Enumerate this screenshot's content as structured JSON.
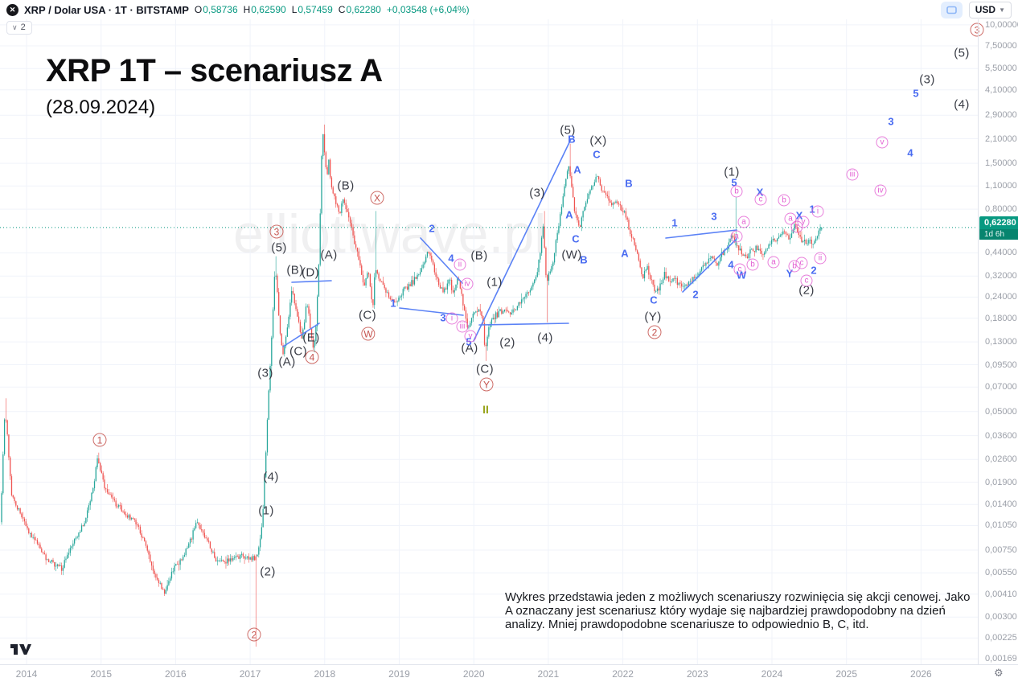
{
  "topbar": {
    "symbol": "XRP / Dolar USA · 1T · BITSTAMP",
    "ohlc": {
      "o_label": "O",
      "o_value": "0,58736",
      "h_label": "H",
      "h_value": "0,62590",
      "l_label": "L",
      "l_value": "0,57459",
      "c_label": "C",
      "c_value": "0,62280",
      "change": "+0,03548 (+6,04%)"
    },
    "currency_button": "USD",
    "interval_badge": "2"
  },
  "title": {
    "main": "XRP 1T – scenariusz A",
    "date": "(28.09.2024)"
  },
  "watermark": "elliottwave.pl",
  "disclaimer": "Wykres przedstawia jeden z możliwych scenariuszy rozwinięcia się akcji cenowej. Jako A oznaczany jest scenariusz który wydaje się najbardziej prawdopodobny na dzień analizy. Mniej prawdopodobne scenariusze to odpowiednio B, C, itd.",
  "price_scale": {
    "ticks": [
      [
        "10,00000",
        10.0
      ],
      [
        "7,50000",
        7.5
      ],
      [
        "5,50000",
        5.5
      ],
      [
        "4,10000",
        4.1
      ],
      [
        "2,90000",
        2.9
      ],
      [
        "2,10000",
        2.1
      ],
      [
        "1,50000",
        1.5
      ],
      [
        "1,10000",
        1.1
      ],
      [
        "0,80000",
        0.8
      ],
      [
        "0,44000",
        0.44
      ],
      [
        "0,32000",
        0.32
      ],
      [
        "0,24000",
        0.24
      ],
      [
        "0,18000",
        0.18
      ],
      [
        "0,13000",
        0.13
      ],
      [
        "0,09500",
        0.095
      ],
      [
        "0,07000",
        0.07
      ],
      [
        "0,05000",
        0.05
      ],
      [
        "0,03600",
        0.036
      ],
      [
        "0,02600",
        0.026
      ],
      [
        "0,01900",
        0.019
      ],
      [
        "0,01400",
        0.014
      ],
      [
        "0,01050",
        0.0105
      ],
      [
        "0,00750",
        0.0075
      ],
      [
        "0,00550",
        0.0055
      ],
      [
        "0,00410",
        0.0041
      ],
      [
        "0,00300",
        0.003
      ],
      [
        "0,00225",
        0.00225
      ],
      [
        "0,00169",
        0.00169
      ]
    ],
    "current": {
      "price": "0,62280",
      "countdown": "1d 6h"
    }
  },
  "time_scale": {
    "years": [
      2014,
      2015,
      2016,
      2017,
      2018,
      2019,
      2020,
      2021,
      2022,
      2023,
      2024,
      2025,
      2026
    ]
  },
  "colors": {
    "candle_up": "#26a69a",
    "candle_down": "#ef5350",
    "grid": "#f0f3fa",
    "trendline": "#5b82f6",
    "accent_green": "#089981",
    "axis_text": "#9b9fa8",
    "label_black": "#3a3d46",
    "label_blue": "#4a6cf1",
    "label_red": "#c5534e",
    "label_pink": "#e25ed2",
    "label_olive": "#98a41a"
  },
  "chart_data": {
    "type": "candlestick",
    "symbol": "XRP/USD (Bitstamp)",
    "timeframe": "1T (weekly)",
    "scale": "logarithmic",
    "x_domain": [
      2013.66,
      2026.3
    ],
    "last_price": 0.6228,
    "last_candle": {
      "open": 0.58736,
      "high": 0.6259,
      "low": 0.57459,
      "close": 0.6228,
      "change": 0.03548,
      "change_pct": 6.04
    },
    "price_anchors": [
      [
        2013.67,
        0.011
      ],
      [
        2013.73,
        0.054
      ],
      [
        2013.82,
        0.0162
      ],
      [
        2013.97,
        0.0113
      ],
      [
        2014.13,
        0.0087
      ],
      [
        2014.29,
        0.0066
      ],
      [
        2014.49,
        0.0059
      ],
      [
        2014.67,
        0.0085
      ],
      [
        2014.81,
        0.0113
      ],
      [
        2014.92,
        0.0183
      ],
      [
        2014.97,
        0.0261
      ],
      [
        2015.07,
        0.0176
      ],
      [
        2015.21,
        0.0143
      ],
      [
        2015.37,
        0.012
      ],
      [
        2015.48,
        0.0113
      ],
      [
        2015.61,
        0.0081
      ],
      [
        2015.75,
        0.0053
      ],
      [
        2015.88,
        0.0041
      ],
      [
        2016.0,
        0.0059
      ],
      [
        2016.13,
        0.007
      ],
      [
        2016.31,
        0.011
      ],
      [
        2016.43,
        0.0087
      ],
      [
        2016.58,
        0.0063
      ],
      [
        2016.75,
        0.0066
      ],
      [
        2016.93,
        0.007
      ],
      [
        2017.04,
        0.0066
      ],
      [
        2017.12,
        0.007
      ],
      [
        2017.18,
        0.0104
      ],
      [
        2017.23,
        0.0285
      ],
      [
        2017.26,
        0.0555
      ],
      [
        2017.29,
        0.0985
      ],
      [
        2017.32,
        0.172
      ],
      [
        2017.35,
        0.37
      ],
      [
        2017.38,
        0.27
      ],
      [
        2017.42,
        0.147
      ],
      [
        2017.46,
        0.11
      ],
      [
        2017.5,
        0.138
      ],
      [
        2017.53,
        0.172
      ],
      [
        2017.56,
        0.23
      ],
      [
        2017.59,
        0.27
      ],
      [
        2017.62,
        0.215
      ],
      [
        2017.67,
        0.172
      ],
      [
        2017.71,
        0.131
      ],
      [
        2017.74,
        0.163
      ],
      [
        2017.78,
        0.23
      ],
      [
        2017.81,
        0.182
      ],
      [
        2017.84,
        0.138
      ],
      [
        2017.87,
        0.115
      ],
      [
        2017.9,
        0.163
      ],
      [
        2017.93,
        0.27
      ],
      [
        2017.95,
        0.51
      ],
      [
        2017.97,
        1.25
      ],
      [
        2017.99,
        2.42
      ],
      [
        2018.02,
        1.71
      ],
      [
        2018.05,
        1.18
      ],
      [
        2018.07,
        1.63
      ],
      [
        2018.1,
        1.18
      ],
      [
        2018.13,
        1.0
      ],
      [
        2018.17,
        0.85
      ],
      [
        2018.23,
        0.77
      ],
      [
        2018.26,
        0.95
      ],
      [
        2018.3,
        0.85
      ],
      [
        2018.36,
        0.67
      ],
      [
        2018.42,
        0.51
      ],
      [
        2018.49,
        0.37
      ],
      [
        2018.55,
        0.285
      ],
      [
        2018.6,
        0.345
      ],
      [
        2018.64,
        0.255
      ],
      [
        2018.68,
        0.198
      ],
      [
        2018.69,
        0.37
      ],
      [
        2018.74,
        0.315
      ],
      [
        2018.8,
        0.285
      ],
      [
        2018.88,
        0.24
      ],
      [
        2018.95,
        0.225
      ],
      [
        2019.02,
        0.24
      ],
      [
        2019.09,
        0.27
      ],
      [
        2019.17,
        0.285
      ],
      [
        2019.25,
        0.315
      ],
      [
        2019.34,
        0.37
      ],
      [
        2019.4,
        0.46
      ],
      [
        2019.47,
        0.37
      ],
      [
        2019.53,
        0.3
      ],
      [
        2019.61,
        0.255
      ],
      [
        2019.69,
        0.3
      ],
      [
        2019.75,
        0.255
      ],
      [
        2019.81,
        0.315
      ],
      [
        2019.88,
        0.215
      ],
      [
        2019.94,
        0.154
      ],
      [
        2020.01,
        0.193
      ],
      [
        2020.07,
        0.2
      ],
      [
        2020.14,
        0.182
      ],
      [
        2020.17,
        0.112
      ],
      [
        2020.22,
        0.163
      ],
      [
        2020.29,
        0.182
      ],
      [
        2020.35,
        0.193
      ],
      [
        2020.44,
        0.2
      ],
      [
        2020.52,
        0.193
      ],
      [
        2020.61,
        0.215
      ],
      [
        2020.7,
        0.24
      ],
      [
        2020.78,
        0.27
      ],
      [
        2020.85,
        0.315
      ],
      [
        2020.9,
        0.41
      ],
      [
        2020.95,
        0.65
      ],
      [
        2020.99,
        0.3
      ],
      [
        2021.04,
        0.33
      ],
      [
        2021.09,
        0.41
      ],
      [
        2021.14,
        0.565
      ],
      [
        2021.2,
        0.85
      ],
      [
        2021.25,
        1.18
      ],
      [
        2021.29,
        1.47
      ],
      [
        2021.33,
        1.06
      ],
      [
        2021.39,
        0.72
      ],
      [
        2021.44,
        0.61
      ],
      [
        2021.5,
        0.8
      ],
      [
        2021.55,
        0.95
      ],
      [
        2021.6,
        1.1
      ],
      [
        2021.67,
        1.24
      ],
      [
        2021.73,
        1.06
      ],
      [
        2021.8,
        0.95
      ],
      [
        2021.86,
        0.85
      ],
      [
        2021.93,
        0.92
      ],
      [
        2021.99,
        0.82
      ],
      [
        2022.06,
        0.72
      ],
      [
        2022.12,
        0.565
      ],
      [
        2022.19,
        0.48
      ],
      [
        2022.24,
        0.37
      ],
      [
        2022.29,
        0.315
      ],
      [
        2022.34,
        0.37
      ],
      [
        2022.4,
        0.3
      ],
      [
        2022.47,
        0.255
      ],
      [
        2022.52,
        0.285
      ],
      [
        2022.58,
        0.33
      ],
      [
        2022.64,
        0.3
      ],
      [
        2022.71,
        0.315
      ],
      [
        2022.77,
        0.285
      ],
      [
        2022.84,
        0.27
      ],
      [
        2022.9,
        0.3
      ],
      [
        2022.97,
        0.315
      ],
      [
        2023.03,
        0.335
      ],
      [
        2023.09,
        0.37
      ],
      [
        2023.16,
        0.385
      ],
      [
        2023.22,
        0.42
      ],
      [
        2023.29,
        0.385
      ],
      [
        2023.35,
        0.435
      ],
      [
        2023.42,
        0.46
      ],
      [
        2023.48,
        0.565
      ],
      [
        2023.55,
        0.48
      ],
      [
        2023.61,
        0.435
      ],
      [
        2023.68,
        0.41
      ],
      [
        2023.74,
        0.45
      ],
      [
        2023.81,
        0.47
      ],
      [
        2023.87,
        0.435
      ],
      [
        2023.94,
        0.46
      ],
      [
        2024.0,
        0.51
      ],
      [
        2024.07,
        0.525
      ],
      [
        2024.13,
        0.565
      ],
      [
        2024.2,
        0.58
      ],
      [
        2024.26,
        0.525
      ],
      [
        2024.32,
        0.63
      ],
      [
        2024.39,
        0.545
      ],
      [
        2024.45,
        0.51
      ],
      [
        2024.52,
        0.525
      ],
      [
        2024.57,
        0.51
      ],
      [
        2024.62,
        0.545
      ],
      [
        2024.65,
        0.58
      ],
      [
        2024.69,
        0.6228
      ]
    ],
    "special_wicks": [
      {
        "t": 2013.73,
        "high": 0.06
      },
      {
        "t": 2014.97,
        "high": 0.0285
      },
      {
        "t": 2017.08,
        "low": 0.002,
        "dir": "down"
      },
      {
        "t": 2017.35,
        "high": 0.42
      },
      {
        "t": 2017.99,
        "high": 2.55
      },
      {
        "t": 2018.69,
        "high": 0.78,
        "dir": "up"
      },
      {
        "t": 2020.17,
        "low": 0.1,
        "dir": "down"
      },
      {
        "t": 2020.94,
        "high": 0.78
      },
      {
        "t": 2020.99,
        "low": 0.17,
        "dir": "down"
      },
      {
        "t": 2021.29,
        "high": 1.96
      },
      {
        "t": 2023.51,
        "high": 0.94,
        "dir": "up"
      }
    ],
    "trendlines": [
      [
        363,
        351,
        412,
        349
      ],
      [
        352,
        431,
        397,
        402
      ],
      [
        523,
        296,
        575,
        352
      ],
      [
        497,
        383,
        576,
        392
      ],
      [
        589,
        424,
        710,
        173
      ],
      [
        596,
        404,
        707,
        402
      ],
      [
        828,
        296,
        916,
        286
      ],
      [
        849,
        363,
        916,
        297
      ]
    ],
    "wave_labels": [
      [
        "(5)",
        347,
        308,
        "k"
      ],
      [
        "(B)",
        367,
        336,
        "k"
      ],
      [
        "(D)",
        386,
        339,
        "k"
      ],
      [
        "(A)",
        409,
        317,
        "k"
      ],
      [
        "(B)",
        430,
        231,
        "k"
      ],
      [
        "(C)",
        457,
        392,
        "k"
      ],
      [
        "(A)",
        357,
        450,
        "k"
      ],
      [
        "(C)",
        371,
        437,
        "k"
      ],
      [
        "(E)",
        387,
        420,
        "k"
      ],
      [
        "(3)",
        330,
        464,
        "k"
      ],
      [
        "(4)",
        337,
        593,
        "k"
      ],
      [
        "(1)",
        331,
        635,
        "k"
      ],
      [
        "(2)",
        333,
        711,
        "k"
      ],
      [
        "(B)",
        596,
        318,
        "k"
      ],
      [
        "(1)",
        615,
        351,
        "k"
      ],
      [
        "(A)",
        584,
        433,
        "k"
      ],
      [
        "(2)",
        631,
        426,
        "k"
      ],
      [
        "(4)",
        678,
        420,
        "k"
      ],
      [
        "(C)",
        603,
        459,
        "k"
      ],
      [
        "(5)",
        706,
        162,
        "k"
      ],
      [
        "(X)",
        744,
        175,
        "k"
      ],
      [
        "(3)",
        668,
        240,
        "k"
      ],
      [
        "(W)",
        711,
        317,
        "k"
      ],
      [
        "(Y)",
        812,
        394,
        "k"
      ],
      [
        "(1)",
        910,
        214,
        "k"
      ],
      [
        "(2)",
        1003,
        361,
        "k"
      ],
      [
        "(5)",
        1196,
        66,
        "k"
      ],
      [
        "(3)",
        1153,
        99,
        "k"
      ],
      [
        "(4)",
        1196,
        130,
        "k"
      ],
      [
        "1",
        124,
        547,
        "r"
      ],
      [
        "2",
        316,
        789,
        "r"
      ],
      [
        "3",
        344,
        288,
        "r"
      ],
      [
        "4",
        388,
        444,
        "r"
      ],
      [
        "W",
        458,
        415,
        "r"
      ],
      [
        "X",
        469,
        246,
        "r"
      ],
      [
        "Y",
        605,
        478,
        "r"
      ],
      [
        "2",
        814,
        413,
        "r"
      ],
      [
        "3",
        1215,
        37,
        "r"
      ],
      [
        "1",
        489,
        377,
        "b"
      ],
      [
        "2",
        537,
        284,
        "b"
      ],
      [
        "3",
        551,
        395,
        "b"
      ],
      [
        "4",
        561,
        321,
        "b"
      ],
      [
        "5",
        583,
        425,
        "b"
      ],
      [
        "B",
        711,
        173,
        "b"
      ],
      [
        "A",
        718,
        211,
        "b"
      ],
      [
        "C",
        742,
        192,
        "b"
      ],
      [
        "A",
        708,
        267,
        "b"
      ],
      [
        "C",
        716,
        297,
        "b"
      ],
      [
        "B",
        726,
        323,
        "b"
      ],
      [
        "B",
        782,
        228,
        "b"
      ],
      [
        "A",
        777,
        315,
        "b"
      ],
      [
        "C",
        813,
        373,
        "b"
      ],
      [
        "1",
        839,
        277,
        "b"
      ],
      [
        "3",
        888,
        269,
        "b"
      ],
      [
        "2",
        865,
        366,
        "b"
      ],
      [
        "5",
        913,
        227,
        "b"
      ],
      [
        "X",
        945,
        239,
        "b"
      ],
      [
        "4",
        909,
        329,
        "b"
      ],
      [
        "W",
        922,
        342,
        "b"
      ],
      [
        "Y",
        982,
        340,
        "b"
      ],
      [
        "2",
        1012,
        336,
        "b"
      ],
      [
        "1",
        1010,
        260,
        "b"
      ],
      [
        "X",
        994,
        268,
        "b"
      ],
      [
        "5",
        1139,
        116,
        "b"
      ],
      [
        "3",
        1108,
        151,
        "b"
      ],
      [
        "4",
        1132,
        190,
        "b"
      ],
      [
        "ii",
        572,
        329,
        "p"
      ],
      [
        "iv",
        581,
        353,
        "p"
      ],
      [
        "i",
        562,
        396,
        "p"
      ],
      [
        "iii",
        575,
        406,
        "p"
      ],
      [
        "v",
        585,
        418,
        "p"
      ],
      [
        "b",
        916,
        238,
        "p"
      ],
      [
        "c",
        946,
        248,
        "p"
      ],
      [
        "b",
        975,
        249,
        "p"
      ],
      [
        "a",
        925,
        276,
        "p"
      ],
      [
        "a",
        916,
        294,
        "p"
      ],
      [
        "a",
        983,
        272,
        "p"
      ],
      [
        "c",
        991,
        282,
        "p"
      ],
      [
        "y",
        999,
        276,
        "p"
      ],
      [
        "a",
        962,
        326,
        "p"
      ],
      [
        "c",
        920,
        335,
        "p"
      ],
      [
        "b",
        936,
        329,
        "p"
      ],
      [
        "b",
        988,
        331,
        "p"
      ],
      [
        "c",
        997,
        327,
        "p"
      ],
      [
        "c",
        1003,
        349,
        "p"
      ],
      [
        "i",
        1017,
        263,
        "p"
      ],
      [
        "ii",
        1020,
        321,
        "p"
      ],
      [
        "iii",
        1060,
        217,
        "p"
      ],
      [
        "iv",
        1095,
        237,
        "p"
      ],
      [
        "v",
        1097,
        177,
        "p"
      ],
      [
        "II",
        604,
        509,
        "o"
      ]
    ]
  }
}
